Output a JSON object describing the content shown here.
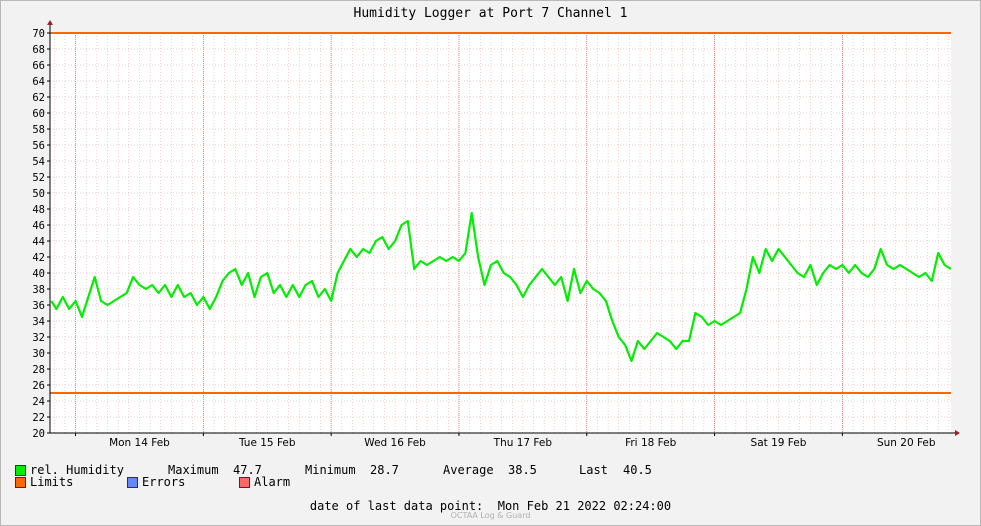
{
  "chart_data": {
    "type": "line",
    "title": "Humidity Logger at Port 7 Channel 1",
    "ylim": [
      20,
      70
    ],
    "yticks": [
      20,
      22,
      24,
      26,
      28,
      30,
      32,
      34,
      36,
      38,
      40,
      42,
      44,
      46,
      48,
      50,
      52,
      54,
      56,
      58,
      60,
      62,
      64,
      66,
      68,
      70
    ],
    "xlim": [
      -0.2,
      6.85
    ],
    "xticks": [
      {
        "label": "Mon 14 Feb",
        "pos": 0.5
      },
      {
        "label": "Tue 15 Feb",
        "pos": 1.5
      },
      {
        "label": "Wed 16 Feb",
        "pos": 2.5
      },
      {
        "label": "Thu 17 Feb",
        "pos": 3.5
      },
      {
        "label": "Fri 18 Feb",
        "pos": 4.5
      },
      {
        "label": "Sat 19 Feb",
        "pos": 5.5
      },
      {
        "label": "Sun 20 Feb",
        "pos": 6.5
      }
    ],
    "limits": [
      25,
      70
    ],
    "series": [
      {
        "name": "rel. Humidity",
        "color": "#00ee00",
        "x": [
          -0.19,
          -0.15,
          -0.1,
          -0.05,
          0.0,
          0.05,
          0.1,
          0.15,
          0.2,
          0.25,
          0.3,
          0.35,
          0.4,
          0.45,
          0.5,
          0.55,
          0.6,
          0.65,
          0.7,
          0.75,
          0.8,
          0.85,
          0.9,
          0.95,
          1.0,
          1.05,
          1.1,
          1.15,
          1.2,
          1.25,
          1.3,
          1.35,
          1.4,
          1.45,
          1.5,
          1.55,
          1.6,
          1.65,
          1.7,
          1.75,
          1.8,
          1.85,
          1.9,
          1.95,
          2.0,
          2.05,
          2.1,
          2.15,
          2.2,
          2.25,
          2.3,
          2.35,
          2.4,
          2.45,
          2.5,
          2.55,
          2.6,
          2.65,
          2.7,
          2.75,
          2.8,
          2.85,
          2.9,
          2.95,
          3.0,
          3.05,
          3.1,
          3.15,
          3.2,
          3.25,
          3.3,
          3.35,
          3.4,
          3.45,
          3.5,
          3.55,
          3.6,
          3.65,
          3.7,
          3.75,
          3.8,
          3.85,
          3.9,
          3.95,
          4.0,
          4.05,
          4.1,
          4.15,
          4.2,
          4.25,
          4.3,
          4.35,
          4.4,
          4.45,
          4.5,
          4.55,
          4.6,
          4.65,
          4.7,
          4.75,
          4.8,
          4.85,
          4.9,
          4.95,
          5.0,
          5.05,
          5.1,
          5.15,
          5.2,
          5.25,
          5.3,
          5.35,
          5.4,
          5.45,
          5.5,
          5.55,
          5.6,
          5.65,
          5.7,
          5.75,
          5.8,
          5.85,
          5.9,
          5.95,
          6.0,
          6.05,
          6.1,
          6.15,
          6.2,
          6.25,
          6.3,
          6.35,
          6.4,
          6.45,
          6.5,
          6.55,
          6.6,
          6.65,
          6.7,
          6.75,
          6.8,
          6.85
        ],
        "values": [
          36.5,
          35.5,
          37,
          35.5,
          36.5,
          34.5,
          37,
          39.5,
          36.5,
          36,
          36.5,
          37,
          37.5,
          39.5,
          38.5,
          38,
          38.5,
          37.5,
          38.5,
          37,
          38.5,
          37,
          37.5,
          36,
          37,
          35.5,
          37,
          39,
          40,
          40.5,
          38.5,
          40,
          37,
          39.5,
          40,
          37.5,
          38.5,
          37,
          38.5,
          37,
          38.5,
          39,
          37,
          38,
          36.5,
          40,
          41.5,
          43,
          42,
          43,
          42.5,
          44,
          44.5,
          43,
          44,
          46,
          46.5,
          40.5,
          41.5,
          41,
          41.5,
          42,
          41.5,
          42,
          41.5,
          42.5,
          47.5,
          42,
          38.5,
          41,
          41.5,
          40,
          39.5,
          38.5,
          37,
          38.5,
          39.5,
          40.5,
          39.5,
          38.5,
          39.5,
          36.5,
          40.5,
          37.5,
          39,
          38,
          37.5,
          36.5,
          34,
          32,
          31,
          29,
          31.5,
          30.5,
          31.5,
          32.5,
          32,
          31.5,
          30.5,
          31.5,
          31.5,
          35,
          34.5,
          33.5,
          34,
          33.5,
          34,
          34.5,
          35,
          38,
          42,
          40,
          43,
          41.5,
          43,
          42,
          41,
          40,
          39.5,
          41,
          38.5,
          40,
          41,
          40.5,
          41,
          40,
          41,
          40,
          39.5,
          40.5,
          43,
          41,
          40.5,
          41,
          40.5,
          40,
          39.5,
          40,
          39,
          42.5,
          41,
          40.5
        ]
      },
      {
        "name": "Limits",
        "color": "#ff6600"
      },
      {
        "name": "Errors",
        "color": "#6688ff"
      },
      {
        "name": "Alarm",
        "color": "#ff6666"
      }
    ]
  },
  "stats": {
    "maximum_label": "Maximum",
    "maximum": "47.7",
    "minimum_label": "Minimum",
    "minimum": "28.7",
    "average_label": "Average",
    "average": "38.5",
    "last_label": "Last",
    "last": "40.5"
  },
  "last_point_label": "date of last data point:",
  "last_point_value": "Mon Feb 21 2022 02:24:00",
  "watermark": "OCTAA Log & Guard"
}
